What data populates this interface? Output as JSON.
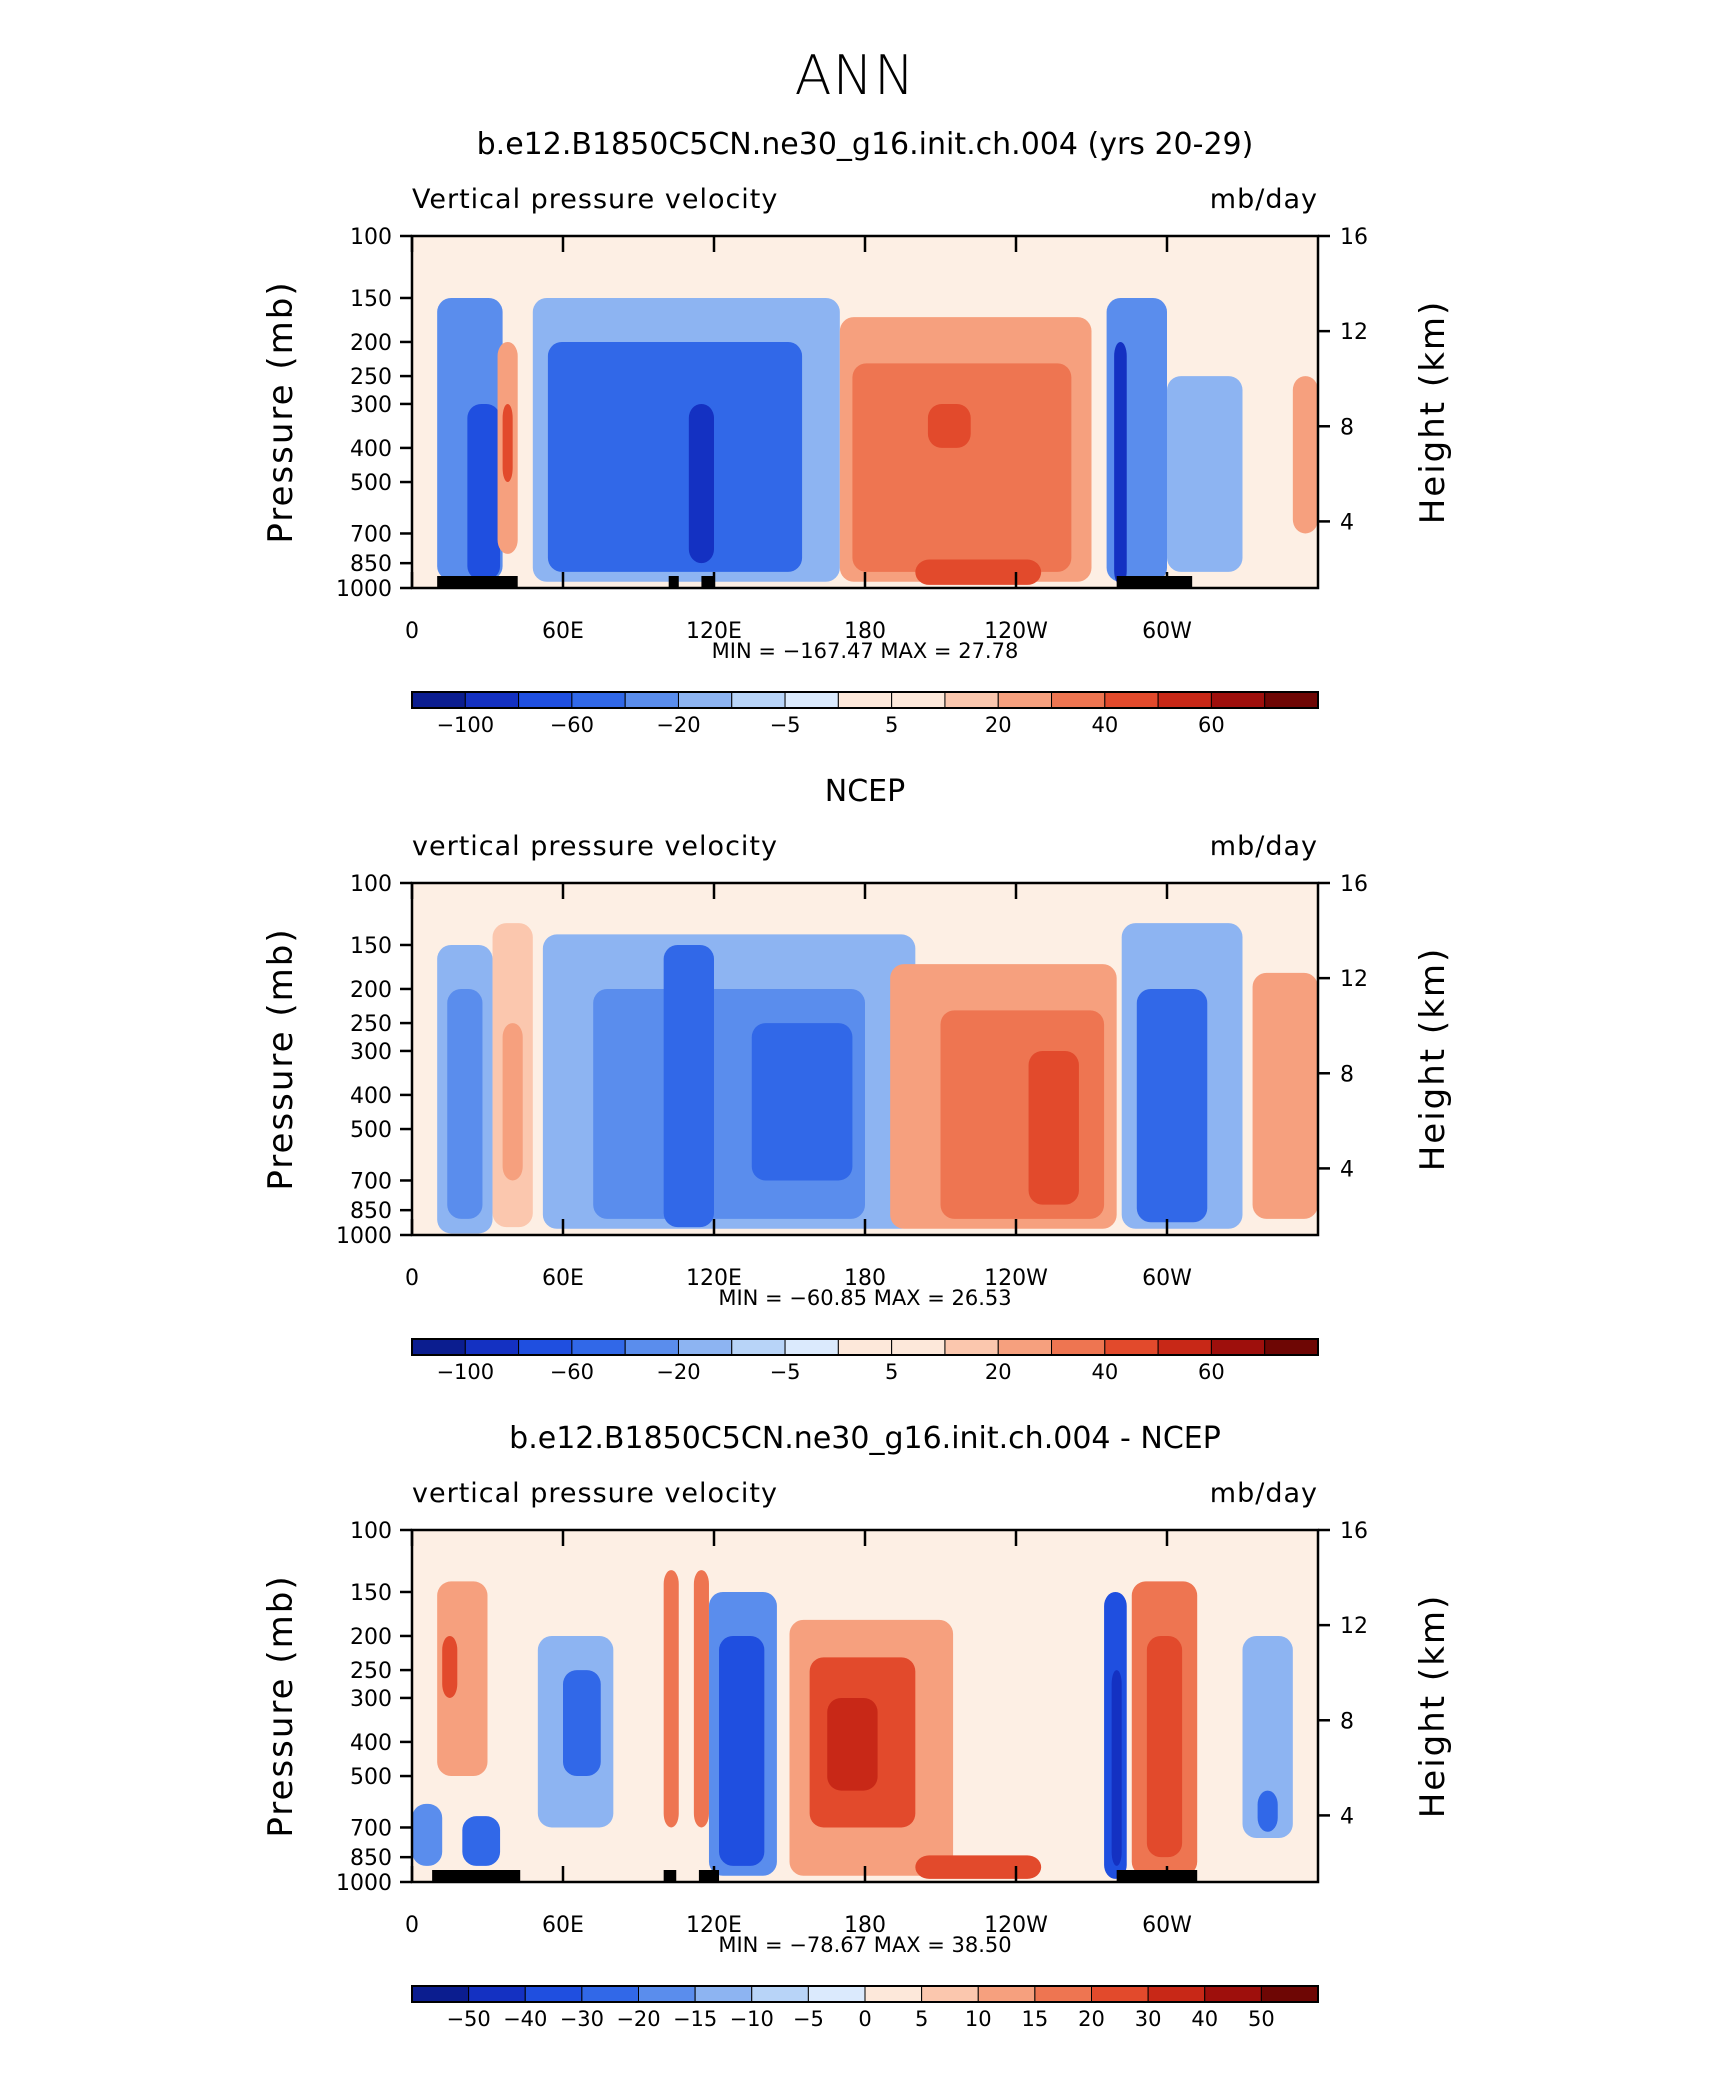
{
  "figure": {
    "title": "ANN"
  },
  "shared": {
    "x_ticks": [
      "0",
      "60E",
      "120E",
      "180",
      "120W",
      "60W"
    ],
    "y_left_ticks": [
      "100",
      "150",
      "200",
      "250",
      "300",
      "400",
      "500",
      "700",
      "850",
      "1000"
    ],
    "y_right_ticks": [
      "16",
      "12",
      "8",
      "4"
    ],
    "y_left_label": "Pressure (mb)",
    "y_right_label": "Height (km)",
    "units": "mb/day"
  },
  "chart_data": [
    {
      "type": "heatmap",
      "title": "b.e12.B1850C5CN.ne30_g16.init.ch.004 (yrs 20-29)",
      "left_label": "Vertical pressure velocity",
      "right_label": "mb/day",
      "stats_text": "MIN = −167.47   MAX =   27.78",
      "min": -167.47,
      "max": 27.78,
      "colorbar_labels": [
        "−100",
        "−60",
        "−20",
        "−5",
        "5",
        "20",
        "40",
        "60"
      ],
      "colorbar_levels": [
        -100,
        -80,
        -60,
        -40,
        -20,
        -10,
        -5,
        0,
        5,
        10,
        20,
        30,
        40,
        50,
        60,
        70
      ],
      "x_range_deg_east": [
        0,
        360
      ],
      "y_range_mb": [
        1000,
        100
      ],
      "regions": [
        {
          "lon": [
            10,
            36
          ],
          "p": [
            150,
            950
          ],
          "level": -4
        },
        {
          "lon": [
            22,
            35
          ],
          "p": [
            300,
            950
          ],
          "level": -6
        },
        {
          "lon": [
            34,
            42
          ],
          "p": [
            200,
            800
          ],
          "level": 3
        },
        {
          "lon": [
            36,
            40
          ],
          "p": [
            300,
            500
          ],
          "level": 5
        },
        {
          "lon": [
            48,
            170
          ],
          "p": [
            150,
            960
          ],
          "level": -3
        },
        {
          "lon": [
            54,
            155
          ],
          "p": [
            200,
            900
          ],
          "level": -5
        },
        {
          "lon": [
            110,
            120
          ],
          "p": [
            300,
            850
          ],
          "level": -7
        },
        {
          "lon": [
            170,
            270
          ],
          "p": [
            170,
            960
          ],
          "level": 3
        },
        {
          "lon": [
            175,
            262
          ],
          "p": [
            230,
            900
          ],
          "level": 4
        },
        {
          "lon": [
            205,
            222
          ],
          "p": [
            300,
            400
          ],
          "level": 5
        },
        {
          "lon": [
            200,
            250
          ],
          "p": [
            830,
            980
          ],
          "level": 5
        },
        {
          "lon": [
            276,
            300
          ],
          "p": [
            150,
            960
          ],
          "level": -4
        },
        {
          "lon": [
            279,
            284
          ],
          "p": [
            200,
            980
          ],
          "level": -7
        },
        {
          "lon": [
            300,
            330
          ],
          "p": [
            250,
            900
          ],
          "level": -3
        },
        {
          "lon": [
            350,
            360
          ],
          "p": [
            250,
            700
          ],
          "level": 3
        }
      ],
      "topography": [
        [
          10,
          42
        ],
        [
          102,
          106
        ],
        [
          115,
          120
        ],
        [
          280,
          310
        ]
      ]
    },
    {
      "type": "heatmap",
      "title": "NCEP",
      "left_label": "vertical pressure velocity",
      "right_label": "mb/day",
      "stats_text": "MIN = −60.85   MAX =   26.53",
      "min": -60.85,
      "max": 26.53,
      "colorbar_labels": [
        "−100",
        "−60",
        "−20",
        "−5",
        "5",
        "20",
        "40",
        "60"
      ],
      "colorbar_levels": [
        -100,
        -80,
        -60,
        -40,
        -20,
        -10,
        -5,
        0,
        5,
        10,
        20,
        30,
        40,
        50,
        60,
        70
      ],
      "x_range_deg_east": [
        0,
        360
      ],
      "y_range_mb": [
        1000,
        100
      ],
      "regions": [
        {
          "lon": [
            10,
            32
          ],
          "p": [
            150,
            990
          ],
          "level": -3
        },
        {
          "lon": [
            14,
            28
          ],
          "p": [
            200,
            900
          ],
          "level": -4
        },
        {
          "lon": [
            32,
            48
          ],
          "p": [
            130,
            950
          ],
          "level": 2
        },
        {
          "lon": [
            36,
            44
          ],
          "p": [
            250,
            700
          ],
          "level": 3
        },
        {
          "lon": [
            52,
            200
          ],
          "p": [
            140,
            960
          ],
          "level": -3
        },
        {
          "lon": [
            72,
            180
          ],
          "p": [
            200,
            900
          ],
          "level": -4
        },
        {
          "lon": [
            100,
            120
          ],
          "p": [
            150,
            950
          ],
          "level": -5
        },
        {
          "lon": [
            135,
            175
          ],
          "p": [
            250,
            700
          ],
          "level": -5
        },
        {
          "lon": [
            190,
            280
          ],
          "p": [
            170,
            960
          ],
          "level": 3
        },
        {
          "lon": [
            210,
            275
          ],
          "p": [
            230,
            900
          ],
          "level": 4
        },
        {
          "lon": [
            245,
            265
          ],
          "p": [
            300,
            820
          ],
          "level": 5
        },
        {
          "lon": [
            282,
            330
          ],
          "p": [
            130,
            960
          ],
          "level": -3
        },
        {
          "lon": [
            288,
            316
          ],
          "p": [
            200,
            920
          ],
          "level": -5
        },
        {
          "lon": [
            334,
            360
          ],
          "p": [
            180,
            900
          ],
          "level": 3
        }
      ],
      "topography": []
    },
    {
      "type": "heatmap",
      "title": "b.e12.B1850C5CN.ne30_g16.init.ch.004 - NCEP",
      "left_label": "vertical pressure velocity",
      "right_label": "mb/day",
      "stats_text": "MIN = −78.67   MAX =   38.50",
      "min": -78.67,
      "max": 38.5,
      "colorbar_labels": [
        "−50",
        "−40",
        "−30",
        "−20",
        "−15",
        "−10",
        "−5",
        "0",
        "5",
        "10",
        "15",
        "20",
        "30",
        "40",
        "50"
      ],
      "colorbar_levels": [
        -50,
        -40,
        -30,
        -20,
        -15,
        -10,
        -5,
        0,
        5,
        10,
        15,
        20,
        30,
        40,
        50
      ],
      "x_range_deg_east": [
        0,
        360
      ],
      "y_range_mb": [
        1000,
        100
      ],
      "regions": [
        {
          "lon": [
            10,
            30
          ],
          "p": [
            140,
            500
          ],
          "level": 3
        },
        {
          "lon": [
            12,
            18
          ],
          "p": [
            200,
            300
          ],
          "level": 5
        },
        {
          "lon": [
            0,
            12
          ],
          "p": [
            600,
            900
          ],
          "level": -4
        },
        {
          "lon": [
            20,
            35
          ],
          "p": [
            650,
            900
          ],
          "level": -5
        },
        {
          "lon": [
            50,
            80
          ],
          "p": [
            200,
            700
          ],
          "level": -3
        },
        {
          "lon": [
            60,
            75
          ],
          "p": [
            250,
            500
          ],
          "level": -5
        },
        {
          "lon": [
            100,
            106
          ],
          "p": [
            130,
            700
          ],
          "level": 4
        },
        {
          "lon": [
            112,
            118
          ],
          "p": [
            130,
            700
          ],
          "level": 4
        },
        {
          "lon": [
            118,
            145
          ],
          "p": [
            150,
            960
          ],
          "level": -4
        },
        {
          "lon": [
            122,
            140
          ],
          "p": [
            200,
            900
          ],
          "level": -6
        },
        {
          "lon": [
            150,
            215
          ],
          "p": [
            180,
            960
          ],
          "level": 3
        },
        {
          "lon": [
            158,
            200
          ],
          "p": [
            230,
            700
          ],
          "level": 5
        },
        {
          "lon": [
            165,
            185
          ],
          "p": [
            300,
            550
          ],
          "level": 6
        },
        {
          "lon": [
            200,
            250
          ],
          "p": [
            840,
            980
          ],
          "level": 5
        },
        {
          "lon": [
            275,
            284
          ],
          "p": [
            150,
            980
          ],
          "level": -6
        },
        {
          "lon": [
            278,
            282
          ],
          "p": [
            250,
            900
          ],
          "level": -7
        },
        {
          "lon": [
            286,
            312
          ],
          "p": [
            140,
            960
          ],
          "level": 4
        },
        {
          "lon": [
            292,
            306
          ],
          "p": [
            200,
            850
          ],
          "level": 5
        },
        {
          "lon": [
            330,
            350
          ],
          "p": [
            200,
            750
          ],
          "level": -3
        },
        {
          "lon": [
            336,
            344
          ],
          "p": [
            550,
            720
          ],
          "level": -5
        }
      ],
      "topography": [
        [
          8,
          43
        ],
        [
          100,
          105
        ],
        [
          114,
          122
        ],
        [
          280,
          312
        ]
      ]
    }
  ]
}
